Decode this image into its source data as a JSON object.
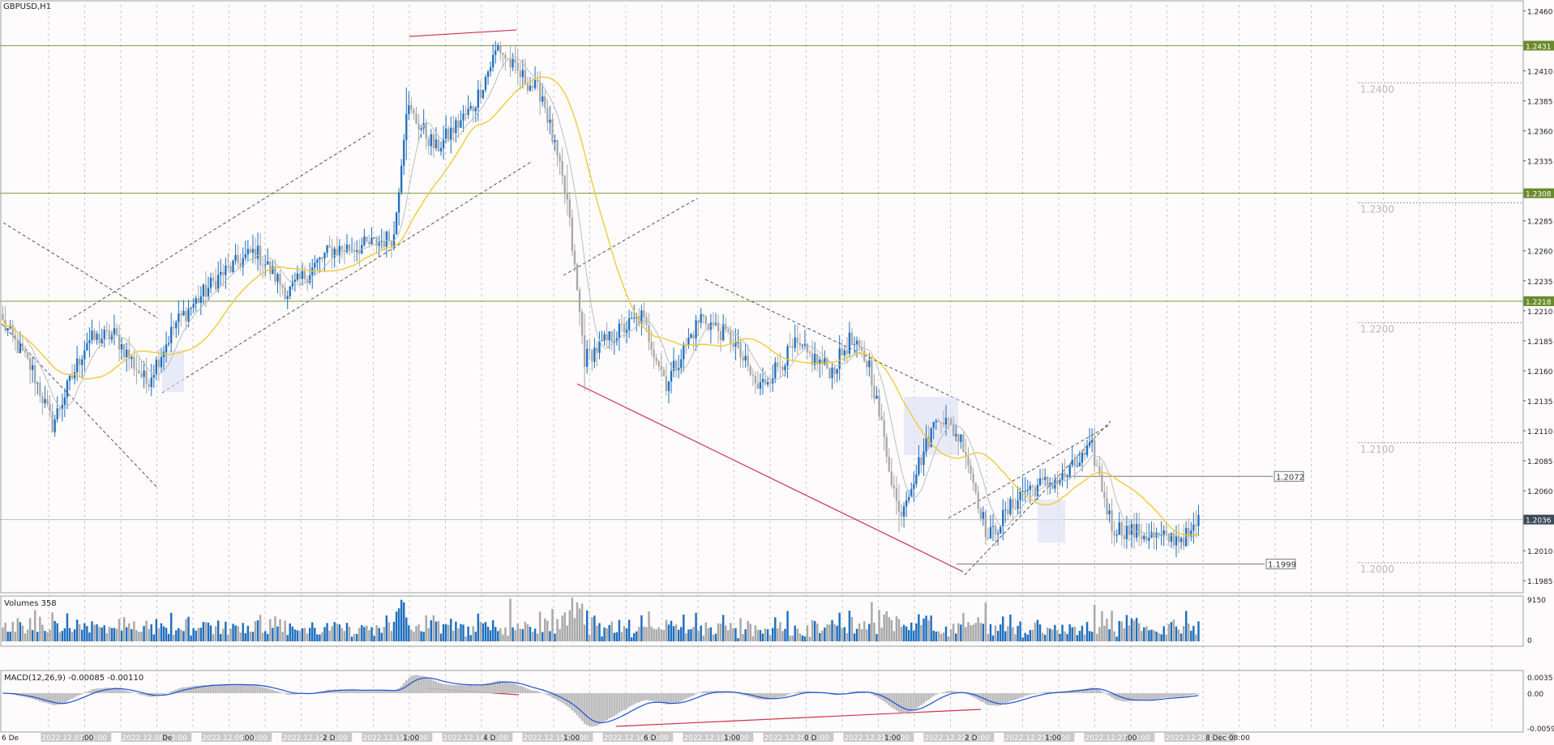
{
  "chart_title": "GBPUSD,H1",
  "volumes_title": "Volumes 358",
  "macd_title": "MACD(12,26,9) -0.00085 -0.00110",
  "colors": {
    "bull": "#1e6fc0",
    "bear": "#a8a8a8",
    "ma_slow": "#f0c830",
    "ma_fast": "#b9c1be",
    "level": "#7a9a3a",
    "divergence": "#d0304a",
    "macd_line": "#1e4ed8",
    "macd_hist": "#bdbdbd",
    "current_price": "#3c4b5a",
    "highlight": "#dcdff5"
  },
  "chart_data": {
    "type": "candlestick",
    "symbol": "GBPUSD",
    "timeframe": "H1",
    "ylim": [
      1.1975,
      1.2465
    ],
    "price_ticks": [
      "1.2460",
      "1.2431",
      "1.2410",
      "1.2385",
      "1.2360",
      "1.2335",
      "1.2308",
      "1.2285",
      "1.2260",
      "1.2235",
      "1.2218",
      "1.2210",
      "1.2185",
      "1.2160",
      "1.2135",
      "1.2110",
      "1.2085",
      "1.2060",
      "1.2036",
      "1.2010",
      "1.1985"
    ],
    "horizontal_levels": [
      {
        "price": 1.2431,
        "label": "1.2431"
      },
      {
        "price": 1.2308,
        "label": "1.2308"
      },
      {
        "price": 1.2218,
        "label": "1.2218"
      }
    ],
    "current_price": {
      "price": 1.2036,
      "label": "1.2036"
    },
    "round_levels": [
      {
        "price": 1.24,
        "label": "1.2400"
      },
      {
        "price": 1.23,
        "label": "1.2300"
      },
      {
        "price": 1.22,
        "label": "1.2200"
      },
      {
        "price": 1.21,
        "label": "1.2100"
      },
      {
        "price": 1.2,
        "label": "1.2000"
      }
    ],
    "marked_prices": [
      {
        "price": 1.2072,
        "label": "1.2072"
      },
      {
        "price": 1.1999,
        "label": "1.1999"
      }
    ],
    "time_labels": [
      "6 De",
      "2022.12.07 00:00",
      ":00",
      "2022.12.08 00:00",
      "De",
      "2022.12.09 00:00",
      ":00",
      "2022.12.12 00:00",
      "2 D",
      "2022.12.13 00:00",
      "1:00",
      "2022.12.14 00:00",
      "4 D",
      "2022.12.15 00:00",
      "1:00",
      "2022.12.16 00:00",
      "6 D",
      "2022.12.19 00:00",
      "1:00",
      "2022.12.20 00:00",
      "0 D",
      "2022.12.21 00:00",
      "1:00",
      "2022.12.22 00:00",
      "2 D",
      "2022.12.23 00:00",
      "1:00",
      "2022.12.27 00:00",
      ":00",
      "2022.12.28 00:00",
      "8 Dec 08:00"
    ],
    "path_anchors": [
      [
        0,
        1.22
      ],
      [
        12,
        1.216
      ],
      [
        20,
        1.2115
      ],
      [
        34,
        1.2185
      ],
      [
        45,
        1.219
      ],
      [
        58,
        1.215
      ],
      [
        70,
        1.22
      ],
      [
        88,
        1.224
      ],
      [
        102,
        1.226
      ],
      [
        115,
        1.2225
      ],
      [
        132,
        1.226
      ],
      [
        148,
        1.2265
      ],
      [
        158,
        1.2272
      ],
      [
        163,
        1.238
      ],
      [
        175,
        1.2345
      ],
      [
        190,
        1.238
      ],
      [
        200,
        1.243
      ],
      [
        207,
        1.241
      ],
      [
        218,
        1.239
      ],
      [
        228,
        1.23
      ],
      [
        235,
        1.217
      ],
      [
        247,
        1.219
      ],
      [
        258,
        1.2205
      ],
      [
        268,
        1.215
      ],
      [
        282,
        1.2205
      ],
      [
        295,
        1.2185
      ],
      [
        305,
        1.2145
      ],
      [
        320,
        1.218
      ],
      [
        335,
        1.216
      ],
      [
        342,
        1.2185
      ],
      [
        350,
        1.2165
      ],
      [
        362,
        1.204
      ],
      [
        378,
        1.2125
      ],
      [
        388,
        1.21
      ],
      [
        398,
        1.202
      ],
      [
        412,
        1.206
      ],
      [
        428,
        1.207
      ],
      [
        440,
        1.2095
      ],
      [
        448,
        1.203
      ],
      [
        468,
        1.202
      ],
      [
        480,
        1.2022
      ],
      [
        483,
        1.2036
      ]
    ],
    "volume_ylim": [
      0,
      9150
    ],
    "volume_ticks": [
      "9150",
      "0"
    ],
    "macd_ticks": [
      "0.0035",
      "0.00",
      "-0.00592"
    ],
    "macd_values": {
      "main": -0.00085,
      "signal": -0.0011
    }
  }
}
